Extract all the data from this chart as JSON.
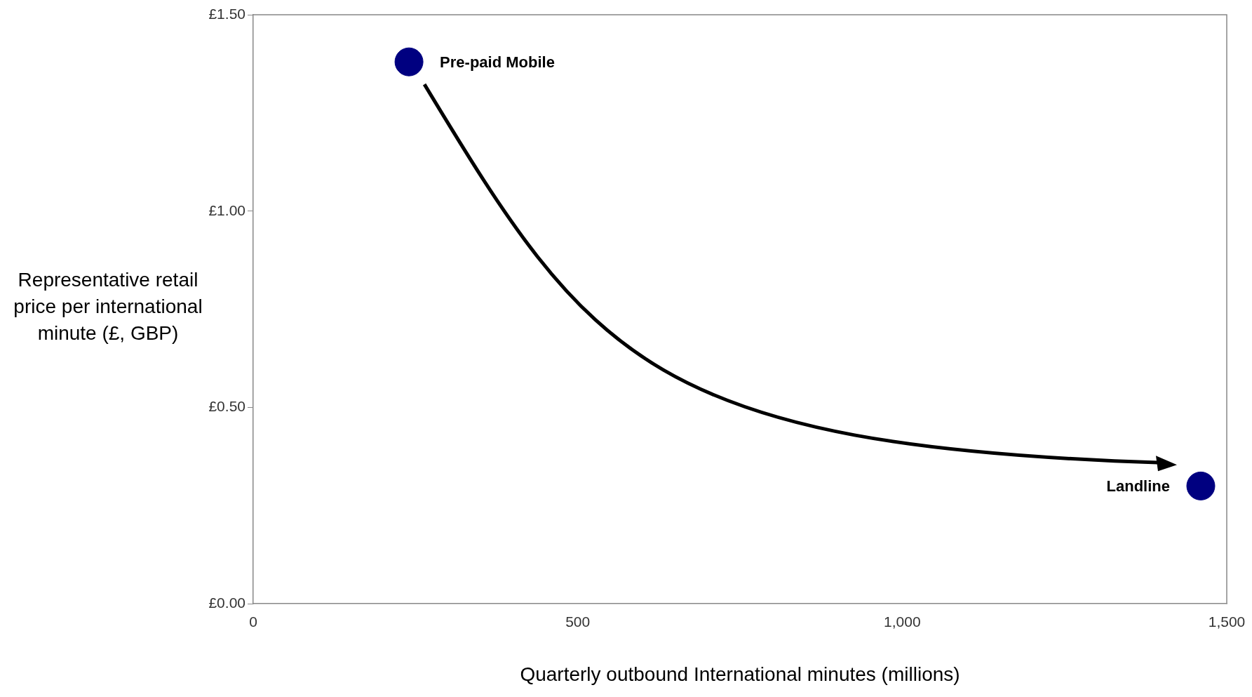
{
  "chart_data": {
    "type": "scatter",
    "xlabel": "Quarterly outbound International minutes (millions)",
    "ylabel": "Representative retail price per international minute (£, GBP)",
    "xlim": [
      0,
      1500
    ],
    "xticks": [
      0,
      500,
      {
        "value": 1000,
        "label": "1,000"
      },
      {
        "value": 1500,
        "label": "1,500"
      }
    ],
    "ylim": [
      0,
      1.5
    ],
    "yticks": [
      {
        "value": 0,
        "label": "£0.00"
      },
      {
        "value": 0.5,
        "label": "£0.50"
      },
      {
        "value": 1,
        "label": "£1.00"
      },
      {
        "value": 1.5,
        "label": "£1.50"
      }
    ],
    "series": [
      {
        "name": "Pre-paid Mobile",
        "color": "#000080",
        "x": [
          240
        ],
        "values": [
          1.38
        ]
      },
      {
        "name": "Landline",
        "color": "#000080",
        "x": [
          1460
        ],
        "values": [
          0.3
        ]
      }
    ],
    "grid": false,
    "legend": false,
    "marker": "circle"
  }
}
